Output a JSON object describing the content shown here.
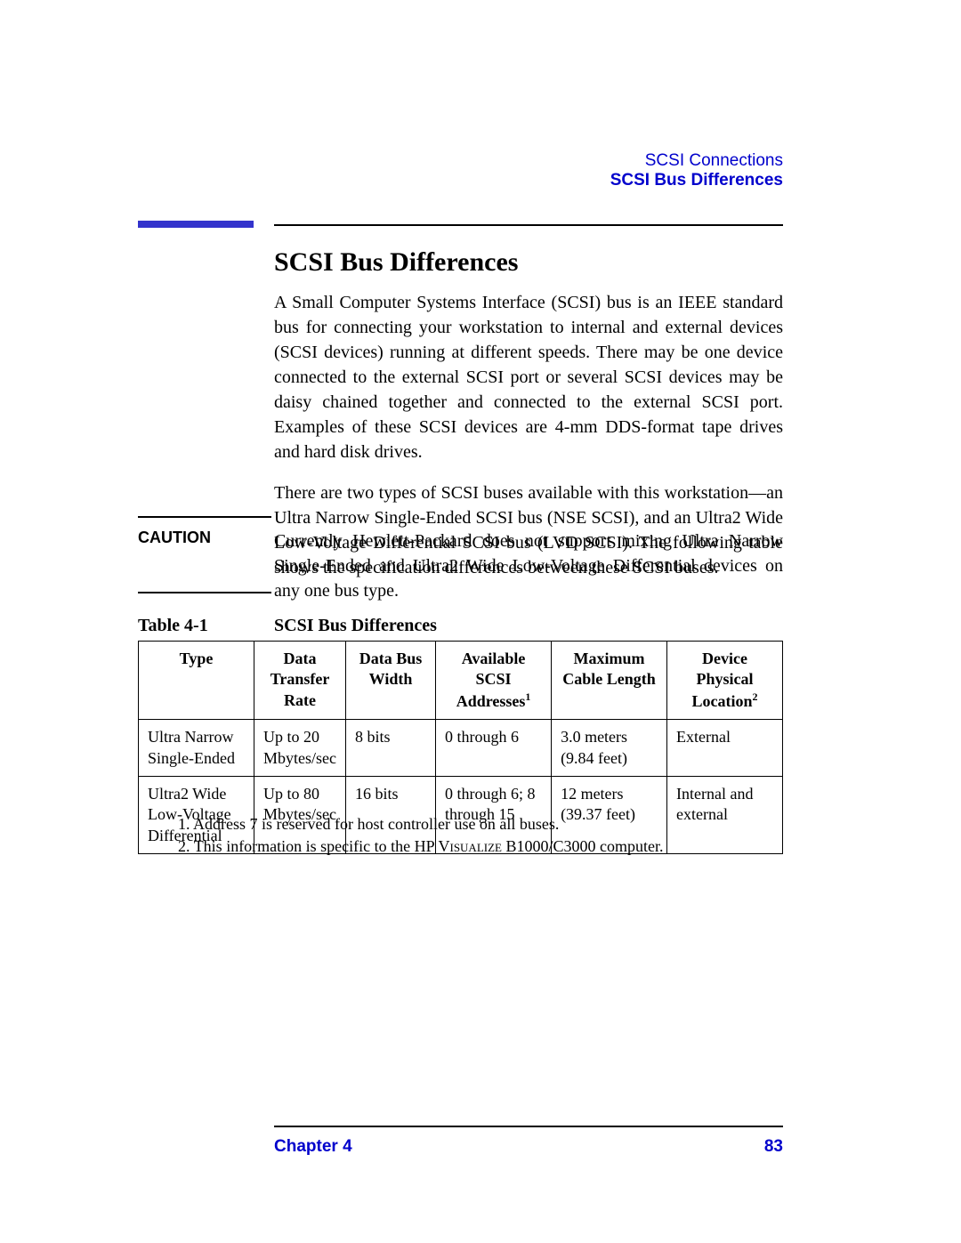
{
  "header": {
    "section": "SCSI Connections",
    "subsection": "SCSI Bus Differences"
  },
  "heading": "SCSI Bus Differences",
  "para1": "A Small Computer Systems Interface (SCSI) bus is an IEEE standard bus for connecting your workstation to internal and external devices (SCSI devices) running at different speeds. There may be one device connected to the external SCSI port or several SCSI devices may be daisy chained together and connected to the external SCSI port. Examples of these SCSI devices are 4-mm DDS-format tape drives and hard disk drives.",
  "para2": "There are two types of SCSI buses available with this workstation—an Ultra Narrow Single-Ended SCSI bus (NSE SCSI), and an Ultra2 Wide Low-Voltage Differential SCSI bus (LVD SCSI). The following table shows the specification differences between these SCSI buses.",
  "caution": {
    "label": "CAUTION",
    "text": "Currently Hewlett-Packard does not support mixing Ultra Narrow Single-Ended and Ultra2 Wide Low-Voltage Differential devices on any one bus type."
  },
  "table": {
    "label": "Table 4-1",
    "title": "SCSI Bus Differences",
    "columns": [
      {
        "text": "Type",
        "sup": ""
      },
      {
        "text": "Data Transfer Rate",
        "sup": ""
      },
      {
        "text": "Data Bus Width",
        "sup": ""
      },
      {
        "text": "Available SCSI Addresses",
        "sup": "1"
      },
      {
        "text": "Maximum Cable Length",
        "sup": ""
      },
      {
        "text": "Device Physical Location",
        "sup": "2"
      }
    ],
    "col_widths_pct": [
      18,
      14,
      14,
      18,
      18,
      18
    ],
    "rows": [
      [
        "Ultra Narrow Single-Ended",
        "Up to 20 Mbytes/sec",
        "8 bits",
        "0 through 6",
        "3.0 meters (9.84 feet)",
        "External"
      ],
      [
        "Ultra2 Wide Low-Voltage Differential",
        "Up to 80 Mbytes/sec",
        "16 bits",
        "0 through 6; 8 through 15",
        "12 meters (39.37 feet)",
        "Internal and external"
      ]
    ]
  },
  "footnotes": {
    "fn1_num": "1. ",
    "fn1_text": "Address 7 is reserved for host controller use on all buses.",
    "fn2_num": "2. ",
    "fn2_prefix": "This information is specific to the HP ",
    "fn2_sc": "Visualize",
    "fn2_suffix": " B1000/C3000 computer."
  },
  "footer": {
    "chapter": "Chapter 4",
    "page": "83"
  },
  "style": {
    "link_color": "#0000cc"
  }
}
